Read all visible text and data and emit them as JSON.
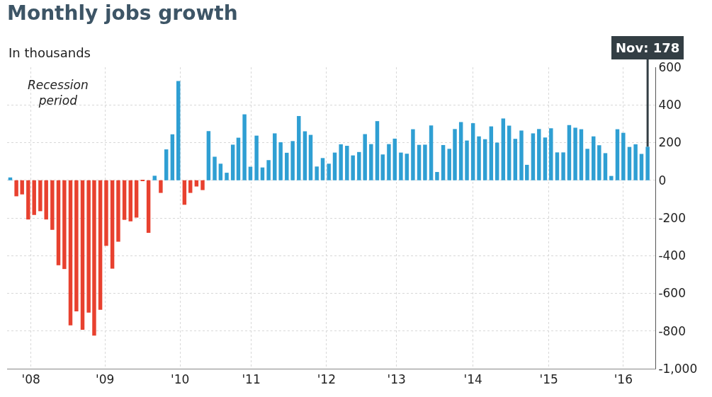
{
  "chart_data": {
    "type": "bar",
    "title": "Monthly jobs growth",
    "subtitle": "In thousands",
    "x": [
      "2008-01",
      "2008-02",
      "2008-03",
      "2008-04",
      "2008-05",
      "2008-06",
      "2008-07",
      "2008-08",
      "2008-09",
      "2008-10",
      "2008-11",
      "2008-12",
      "2009-01",
      "2009-02",
      "2009-03",
      "2009-04",
      "2009-05",
      "2009-06",
      "2009-07",
      "2009-08",
      "2009-09",
      "2009-10",
      "2009-11",
      "2009-12",
      "2010-01",
      "2010-02",
      "2010-03",
      "2010-04",
      "2010-05",
      "2010-06",
      "2010-07",
      "2010-08",
      "2010-09",
      "2010-10",
      "2010-11",
      "2010-12",
      "2011-01",
      "2011-02",
      "2011-03",
      "2011-04",
      "2011-05",
      "2011-06",
      "2011-07",
      "2011-08",
      "2011-09",
      "2011-10",
      "2011-11",
      "2011-12",
      "2012-01",
      "2012-02",
      "2012-03",
      "2012-04",
      "2012-05",
      "2012-06",
      "2012-07",
      "2012-08",
      "2012-09",
      "2012-10",
      "2012-11",
      "2012-12",
      "2013-01",
      "2013-02",
      "2013-03",
      "2013-04",
      "2013-05",
      "2013-06",
      "2013-07",
      "2013-08",
      "2013-09",
      "2013-10",
      "2013-11",
      "2013-12",
      "2014-01",
      "2014-02",
      "2014-03",
      "2014-04",
      "2014-05",
      "2014-06",
      "2014-07",
      "2014-08",
      "2014-09",
      "2014-10",
      "2014-11",
      "2014-12",
      "2015-01",
      "2015-02",
      "2015-03",
      "2015-04",
      "2015-05",
      "2015-06",
      "2015-07",
      "2015-08",
      "2015-09",
      "2015-10",
      "2015-11",
      "2015-12",
      "2016-01",
      "2016-02",
      "2016-03",
      "2016-04",
      "2016-05",
      "2016-06",
      "2016-07",
      "2016-08",
      "2016-09",
      "2016-10",
      "2016-11"
    ],
    "values": [
      15,
      -85,
      -75,
      -208,
      -184,
      -164,
      -208,
      -263,
      -451,
      -471,
      -770,
      -696,
      -793,
      -702,
      -824,
      -687,
      -348,
      -469,
      -326,
      -210,
      -218,
      -198,
      -3,
      -279,
      24,
      -67,
      164,
      244,
      527,
      -130,
      -67,
      -33,
      -52,
      261,
      125,
      88,
      40,
      189,
      226,
      350,
      72,
      237,
      68,
      107,
      249,
      202,
      146,
      208,
      341,
      260,
      241,
      73,
      118,
      88,
      147,
      191,
      183,
      132,
      150,
      245,
      192,
      314,
      137,
      192,
      221,
      147,
      141,
      271,
      188,
      189,
      291,
      44,
      187,
      167,
      272,
      309,
      211,
      303,
      233,
      218,
      286,
      200,
      328,
      290,
      220,
      264,
      82,
      249,
      272,
      227,
      276,
      148,
      148,
      293,
      279,
      271,
      167,
      233,
      186,
      144,
      23,
      271,
      252,
      177,
      191,
      140,
      178
    ],
    "colors": [
      "#2f9fd3",
      "#e8412f",
      "#e8412f",
      "#e8412f",
      "#e8412f",
      "#e8412f",
      "#e8412f",
      "#e8412f",
      "#e8412f",
      "#e8412f",
      "#e8412f",
      "#e8412f",
      "#e8412f",
      "#e8412f",
      "#e8412f",
      "#e8412f",
      "#e8412f",
      "#e8412f",
      "#e8412f",
      "#e8412f",
      "#e8412f",
      "#e8412f",
      "#e8412f",
      "#e8412f",
      "#2f9fd3",
      "#e8412f",
      "#2f9fd3",
      "#2f9fd3",
      "#2f9fd3",
      "#e8412f",
      "#e8412f",
      "#e8412f",
      "#e8412f",
      "#2f9fd3",
      "#2f9fd3",
      "#2f9fd3",
      "#2f9fd3",
      "#2f9fd3",
      "#2f9fd3",
      "#2f9fd3",
      "#2f9fd3",
      "#2f9fd3",
      "#2f9fd3",
      "#2f9fd3",
      "#2f9fd3",
      "#2f9fd3",
      "#2f9fd3",
      "#2f9fd3",
      "#2f9fd3",
      "#2f9fd3",
      "#2f9fd3",
      "#2f9fd3",
      "#2f9fd3",
      "#2f9fd3",
      "#2f9fd3",
      "#2f9fd3",
      "#2f9fd3",
      "#2f9fd3",
      "#2f9fd3",
      "#2f9fd3",
      "#2f9fd3",
      "#2f9fd3",
      "#2f9fd3",
      "#2f9fd3",
      "#2f9fd3",
      "#2f9fd3",
      "#2f9fd3",
      "#2f9fd3",
      "#2f9fd3",
      "#2f9fd3",
      "#2f9fd3",
      "#2f9fd3",
      "#2f9fd3",
      "#2f9fd3",
      "#2f9fd3",
      "#2f9fd3",
      "#2f9fd3",
      "#2f9fd3",
      "#2f9fd3",
      "#2f9fd3",
      "#2f9fd3",
      "#2f9fd3",
      "#2f9fd3",
      "#2f9fd3",
      "#2f9fd3",
      "#2f9fd3",
      "#2f9fd3",
      "#2f9fd3",
      "#2f9fd3",
      "#2f9fd3",
      "#2f9fd3",
      "#2f9fd3",
      "#2f9fd3",
      "#2f9fd3",
      "#2f9fd3",
      "#2f9fd3",
      "#2f9fd3",
      "#2f9fd3",
      "#2f9fd3",
      "#2f9fd3",
      "#2f9fd3",
      "#2f9fd3",
      "#2f9fd3",
      "#2f9fd3",
      "#2f9fd3",
      "#2f9fd3",
      "#2f9fd3"
    ],
    "xlim": [
      "2007-12-16",
      "2016-12-10"
    ],
    "xticks": [
      {
        "value": "2008-04-15",
        "label": "'08"
      },
      {
        "value": "2009-04-25",
        "label": "'09"
      },
      {
        "value": "2010-05-10",
        "label": "'10"
      },
      {
        "value": "2011-05-05",
        "label": "'11"
      },
      {
        "value": "2012-05-20",
        "label": "'12"
      },
      {
        "value": "2013-05-10",
        "label": "'13"
      },
      {
        "value": "2014-06-01",
        "label": "'14"
      },
      {
        "value": "2015-06-20",
        "label": "'15"
      },
      {
        "value": "2016-07-01",
        "label": "'16"
      }
    ],
    "ylim": [
      -1000,
      600
    ],
    "yticks": [
      600,
      400,
      200,
      0,
      -200,
      -400,
      -600,
      -800,
      {
        "value": -1000,
        "label": "-1,000"
      }
    ],
    "grid": true,
    "legend": false,
    "annotations": [
      "Recession period",
      {
        "text": "Nov: 178",
        "x": "2016-11",
        "y": 178
      }
    ]
  }
}
